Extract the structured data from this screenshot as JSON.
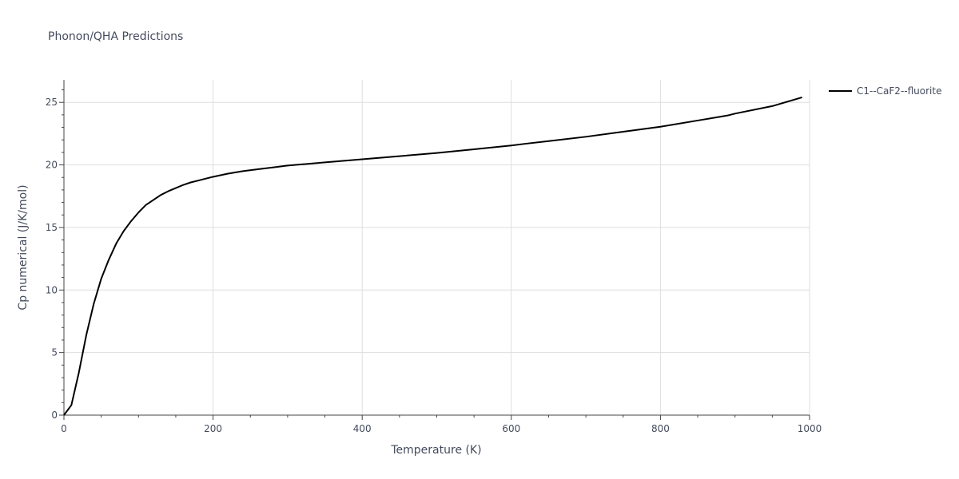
{
  "chart_data": {
    "type": "line",
    "title": "Phonon/QHA Predictions",
    "xlabel": "Temperature (K)",
    "ylabel": "Cp numerical (J/K/mol)",
    "xlim": [
      0,
      1000
    ],
    "ylim": [
      0,
      26.8
    ],
    "x_ticks": [
      0,
      200,
      400,
      600,
      800,
      1000
    ],
    "y_ticks": [
      0,
      5,
      10,
      15,
      20,
      25
    ],
    "x_tick_labels": [
      "0",
      "200",
      "400",
      "600",
      "800",
      "1000"
    ],
    "y_tick_labels": [
      "0",
      "5",
      "10",
      "15",
      "20",
      "25"
    ],
    "grid": true,
    "legend_position": "top-right",
    "series": [
      {
        "name": "C1--CaF2--fluorite",
        "color": "#000000",
        "x": [
          0,
          10,
          20,
          30,
          40,
          50,
          60,
          70,
          80,
          90,
          100,
          110,
          120,
          130,
          140,
          150,
          160,
          170,
          180,
          200,
          220,
          240,
          260,
          280,
          300,
          350,
          400,
          450,
          500,
          550,
          600,
          620,
          650,
          700,
          750,
          800,
          850,
          880,
          890,
          900,
          950,
          990
        ],
        "y": [
          0,
          0.8,
          3.4,
          6.4,
          8.9,
          10.9,
          12.4,
          13.7,
          14.7,
          15.5,
          16.2,
          16.8,
          17.2,
          17.6,
          17.9,
          18.15,
          18.4,
          18.6,
          18.75,
          19.05,
          19.3,
          19.5,
          19.65,
          19.8,
          19.95,
          20.2,
          20.45,
          20.7,
          20.95,
          21.25,
          21.55,
          21.7,
          21.9,
          22.25,
          22.65,
          23.05,
          23.55,
          23.85,
          23.95,
          24.1,
          24.7,
          25.4
        ]
      }
    ]
  }
}
